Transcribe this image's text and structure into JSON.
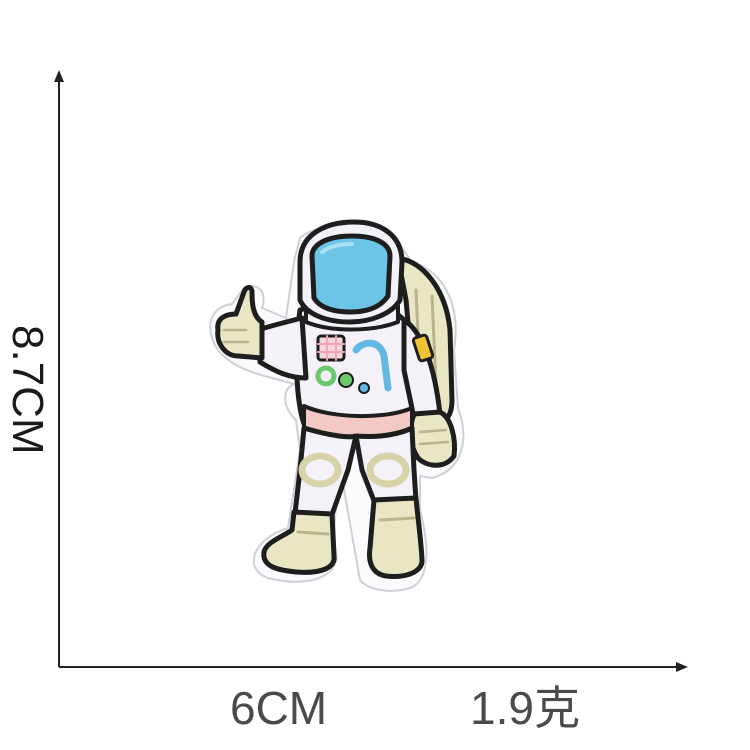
{
  "dimensions": {
    "height_label": "8.7CM",
    "width_label": "6CM",
    "weight_label": "1.9克"
  },
  "colors": {
    "axis": "#222222",
    "patch_border": "#1e1e1e",
    "visor": "#6cc4e6",
    "suit": "#f4f2f8",
    "suit_shadow": "#dcd6ea",
    "boots_gloves": "#e9e6c4",
    "belt": "#f2c9c4",
    "buttons_green": "#6cc86a",
    "buttons_blue": "#63b8e4",
    "panel_pink": "#f1a5b4",
    "patch_yellow": "#f1c232"
  },
  "image": {
    "subject": "astronaut-patch",
    "icons": [
      "astronaut-icon"
    ]
  }
}
